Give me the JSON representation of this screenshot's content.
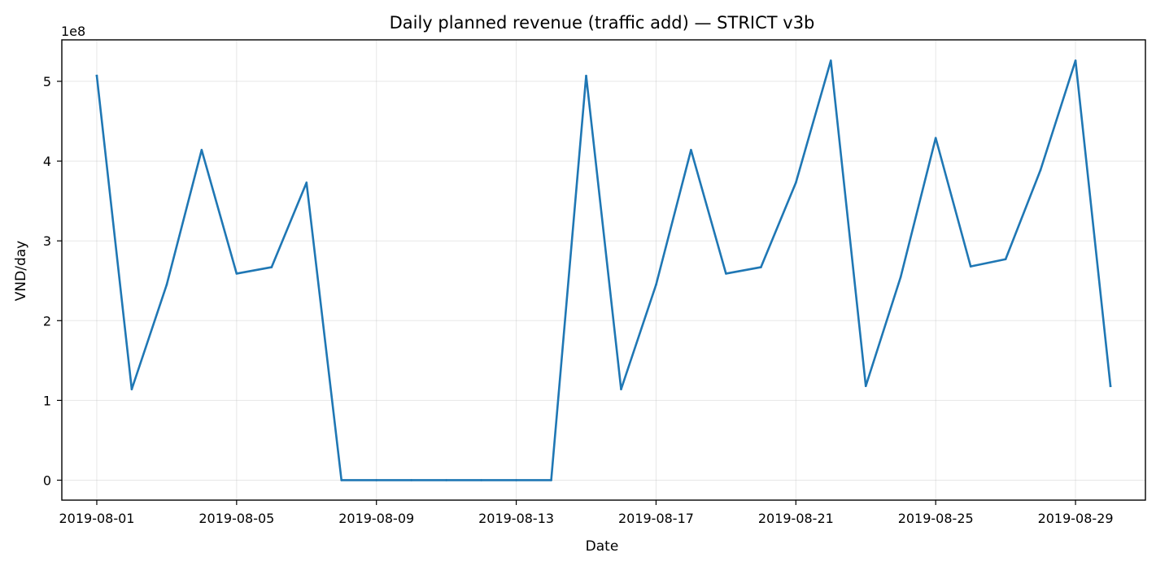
{
  "chart_data": {
    "type": "line",
    "title": "Daily planned revenue (traffic add) — STRICT v3b",
    "xlabel": "Date",
    "ylabel": "VND/day",
    "y_offset_label": "1e8",
    "grid": true,
    "legend": "none",
    "line_color": "#1f77b4",
    "xlim": [
      "2019-07-31T00:00",
      "2019-08-31T00:00"
    ],
    "ylim": [
      -25000000,
      552000000
    ],
    "x_ticks": [
      "2019-08-01",
      "2019-08-05",
      "2019-08-09",
      "2019-08-13",
      "2019-08-17",
      "2019-08-21",
      "2019-08-25",
      "2019-08-29"
    ],
    "y_ticks": [
      0,
      100000000,
      200000000,
      300000000,
      400000000,
      500000000
    ],
    "y_tick_labels": [
      "0",
      "1",
      "2",
      "3",
      "4",
      "5"
    ],
    "series": [
      {
        "x": [
          "2019-08-01",
          "2019-08-02",
          "2019-08-03",
          "2019-08-04",
          "2019-08-05",
          "2019-08-06",
          "2019-08-07",
          "2019-08-08",
          "2019-08-09",
          "2019-08-10",
          "2019-08-11",
          "2019-08-12",
          "2019-08-13",
          "2019-08-14",
          "2019-08-15",
          "2019-08-16",
          "2019-08-17",
          "2019-08-18",
          "2019-08-19",
          "2019-08-20",
          "2019-08-21",
          "2019-08-22",
          "2019-08-23",
          "2019-08-24",
          "2019-08-25",
          "2019-08-26",
          "2019-08-27",
          "2019-08-28",
          "2019-08-29",
          "2019-08-30"
        ],
        "values": [
          507000000,
          114000000,
          245000000,
          414000000,
          259000000,
          267000000,
          373000000,
          0,
          0,
          0,
          0,
          0,
          0,
          0,
          507000000,
          114000000,
          245000000,
          414000000,
          259000000,
          267000000,
          373000000,
          526000000,
          118000000,
          255000000,
          429000000,
          268000000,
          277000000,
          389000000,
          526000000,
          118000000
        ]
      }
    ]
  }
}
